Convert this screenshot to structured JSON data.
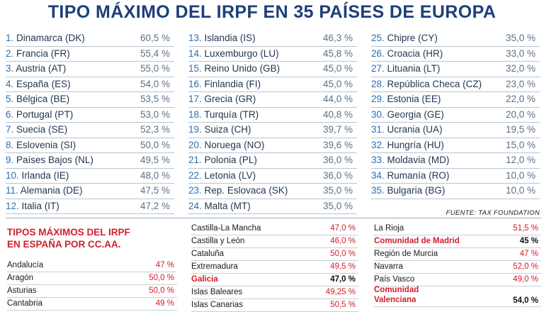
{
  "title": "TIPO MÁXIMO DEL IRPF EN 35 PAÍSES  DE EUROPA",
  "countries": [
    [
      {
        "num": "1.",
        "name": "Dinamarca (DK)",
        "val": "60,5 %"
      },
      {
        "num": "2.",
        "name": "Francia (FR)",
        "val": "55,4 %"
      },
      {
        "num": "3.",
        "name": "Austria (AT)",
        "val": "55,0 %"
      },
      {
        "num": "4.",
        "name": "España (ES)",
        "val": "54,0 %"
      },
      {
        "num": "5.",
        "name": "Bélgica (BE)",
        "val": "53,5 %"
      },
      {
        "num": "6.",
        "name": "Portugal (PT)",
        "val": "53,0 %"
      },
      {
        "num": "7.",
        "name": "Suecia (SE)",
        "val": "52,3 %"
      },
      {
        "num": "8.",
        "name": "Eslovenia (SI)",
        "val": "50,0 %"
      },
      {
        "num": "9.",
        "name": "Países Bajos (NL)",
        "val": "49,5 %"
      },
      {
        "num": "10.",
        "name": "Irlanda (IE)",
        "val": "48,0 %"
      },
      {
        "num": "11.",
        "name": "Alemania (DE)",
        "val": "47,5 %"
      },
      {
        "num": "12.",
        "name": "Italia (IT)",
        "val": "47,2 %"
      }
    ],
    [
      {
        "num": "13.",
        "name": "Islandia (IS)",
        "val": "46,3 %"
      },
      {
        "num": "14.",
        "name": "Luxemburgo (LU)",
        "val": "45,8 %"
      },
      {
        "num": "15.",
        "name": "Reino Unido (GB)",
        "val": "45,0 %"
      },
      {
        "num": "16.",
        "name": "Finlandia (FI)",
        "val": "45,0 %"
      },
      {
        "num": "17.",
        "name": "Grecia (GR)",
        "val": "44,0 %"
      },
      {
        "num": "18.",
        "name": "Turquía (TR)",
        "val": "40,8 %"
      },
      {
        "num": "19.",
        "name": "Suiza (CH)",
        "val": "39,7 %"
      },
      {
        "num": "20.",
        "name": "Noruega (NO)",
        "val": "39,6 %"
      },
      {
        "num": "21.",
        "name": "Polonia (PL)",
        "val": "36,0 %"
      },
      {
        "num": "22.",
        "name": "Letonia (LV)",
        "val": "36,0 %"
      },
      {
        "num": "23.",
        "name": "Rep. Eslovaca (SK)",
        "val": "35,0 %"
      },
      {
        "num": "24.",
        "name": "Malta (MT)",
        "val": "35,0 %"
      }
    ],
    [
      {
        "num": "25.",
        "name": "Chipre (CY)",
        "val": "35,0 %"
      },
      {
        "num": "26.",
        "name": "Croacia (HR)",
        "val": "33,0 %"
      },
      {
        "num": "27.",
        "name": "Lituania (LT)",
        "val": "32,0 %"
      },
      {
        "num": "28.",
        "name": "República Checa (CZ)",
        "val": "23,0 %"
      },
      {
        "num": "29.",
        "name": "Estonia (EE)",
        "val": "22,0 %"
      },
      {
        "num": "30.",
        "name": "Georgia (GE)",
        "val": "20,0 %"
      },
      {
        "num": "31.",
        "name": "Ucrania (UA)",
        "val": "19,5 %"
      },
      {
        "num": "32.",
        "name": "Hungría (HU)",
        "val": "15,0 %"
      },
      {
        "num": "33.",
        "name": "Moldavia (MD)",
        "val": "12,0 %"
      },
      {
        "num": "34.",
        "name": "Rumanía (RO)",
        "val": "10,0 %"
      },
      {
        "num": "35.",
        "name": "Bulgaria (BG)",
        "val": "10,0 %"
      }
    ]
  ],
  "source": "FUENTE: TAX FOUNDATION",
  "regions_title_line1": "TIPOS MÁXIMOS DEL IRPF",
  "regions_title_line2": "EN ESPAÑA POR CC.AA.",
  "regions": [
    [
      {
        "name": "Andalucía",
        "val": "47 %"
      },
      {
        "name": "Aragón",
        "val": "50,0 %"
      },
      {
        "name": "Asturias",
        "val": "50,0 %"
      },
      {
        "name": "Cantabria",
        "val": "49 %"
      }
    ],
    [
      {
        "name": "Castilla-La Mancha",
        "val": "47,0 %"
      },
      {
        "name": "Castilla y León",
        "val": "46,0 %"
      },
      {
        "name": "Cataluña",
        "val": "50,0 %"
      },
      {
        "name": "Extremadura",
        "val": "49,5 %"
      },
      {
        "name": "Galicia",
        "val": "47,0 %",
        "highlight": true
      },
      {
        "name": "Islas Baleares",
        "val": "49,25 %"
      },
      {
        "name": "Islas Canarias",
        "val": "50,5 %"
      }
    ],
    [
      {
        "name": "La Rioja",
        "val": "51,5 %"
      },
      {
        "name": "Comunidad de Madrid",
        "val": "45 %",
        "highlight": true
      },
      {
        "name": "Región de Murcia",
        "val": "47 %"
      },
      {
        "name": "Navarra",
        "val": "52,0 %"
      },
      {
        "name": "País Vasco",
        "val": "49,0 %"
      },
      {
        "name": "Comunidad Valenciana",
        "val": "54,0 %",
        "highlight": true,
        "two_lines": true
      }
    ]
  ]
}
